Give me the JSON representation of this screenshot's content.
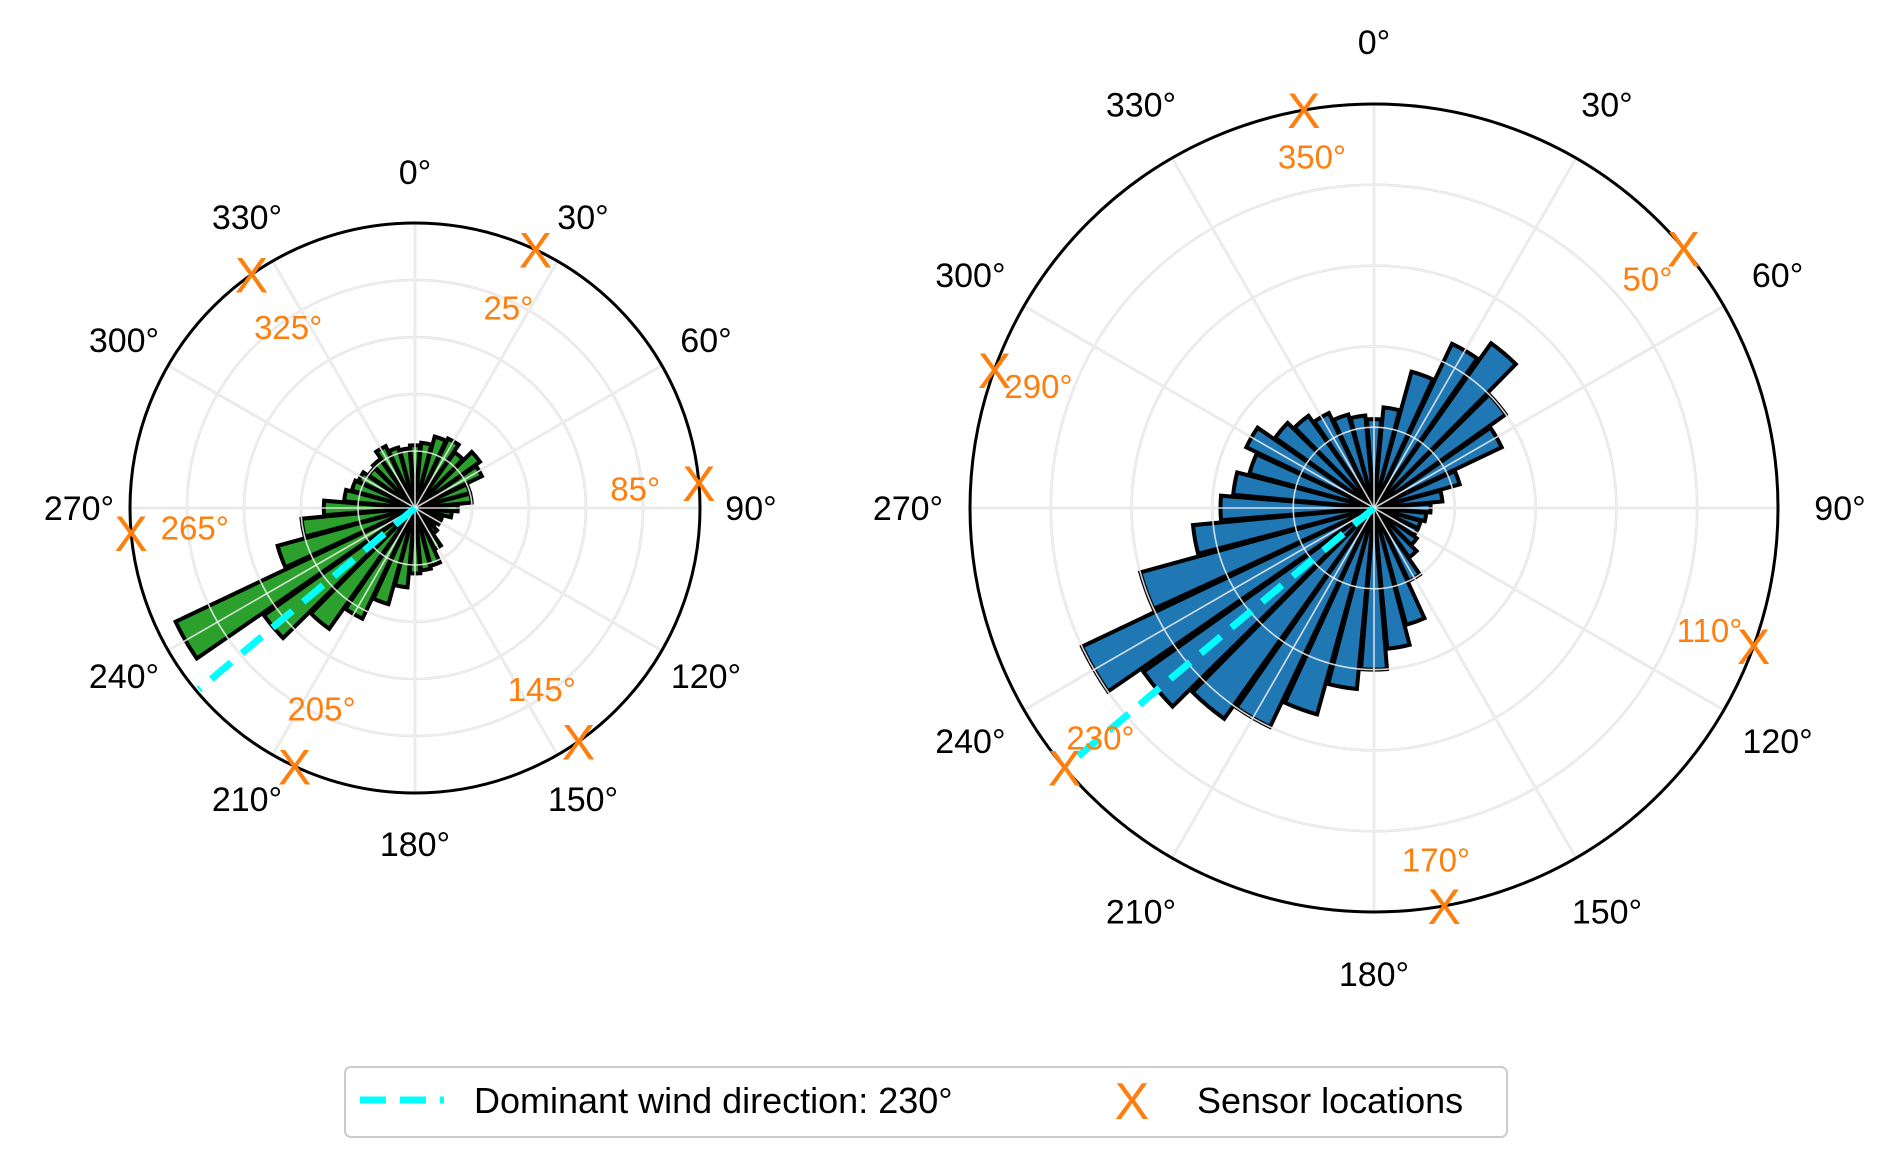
{
  "colors": {
    "sensor": "#ff7f0e",
    "dominant_line": "#00ffff",
    "left_bars": "#2ca02c",
    "right_bars": "#1f77b4",
    "bar_edge": "#000000",
    "grid": "#dcdcdc"
  },
  "legend": {
    "dominant_label": "Dominant wind direction: 230°",
    "sensor_label": "Sensor locations",
    "sensor_marker_glyph": "X"
  },
  "chart_data": [
    {
      "type": "polar-bar",
      "theta_zero": "N",
      "theta_direction": "clockwise",
      "angle_tick_labels": [
        "0°",
        "30°",
        "60°",
        "90°",
        "120°",
        "150°",
        "180°",
        "210°",
        "240°",
        "270°",
        "300°",
        "330°"
      ],
      "bar_color": "#2ca02c",
      "dominant_direction_deg": 230,
      "rmax": 10,
      "radial_gridlines": [
        2,
        4,
        6,
        8,
        10
      ],
      "sensor_radius": 10,
      "sensors": [
        {
          "angle": 25,
          "label": "25°"
        },
        {
          "angle": 85,
          "label": "85°"
        },
        {
          "angle": 145,
          "label": "145°"
        },
        {
          "angle": 205,
          "label": "205°"
        },
        {
          "angle": 265,
          "label": "265°"
        },
        {
          "angle": 325,
          "label": "325°"
        }
      ],
      "bins": [
        {
          "angle": 0,
          "value": 2.2
        },
        {
          "angle": 10,
          "value": 2.3
        },
        {
          "angle": 20,
          "value": 2.6
        },
        {
          "angle": 30,
          "value": 2.7
        },
        {
          "angle": 40,
          "value": 2.4
        },
        {
          "angle": 50,
          "value": 2.8
        },
        {
          "angle": 60,
          "value": 2.6
        },
        {
          "angle": 70,
          "value": 2.0
        },
        {
          "angle": 80,
          "value": 2.0
        },
        {
          "angle": 90,
          "value": 1.5
        },
        {
          "angle": 100,
          "value": 1.3
        },
        {
          "angle": 110,
          "value": 1.0
        },
        {
          "angle": 120,
          "value": 1.0
        },
        {
          "angle": 130,
          "value": 0.9
        },
        {
          "angle": 140,
          "value": 1.1
        },
        {
          "angle": 150,
          "value": 1.6
        },
        {
          "angle": 160,
          "value": 2.1
        },
        {
          "angle": 170,
          "value": 2.2
        },
        {
          "angle": 180,
          "value": 2.3
        },
        {
          "angle": 190,
          "value": 2.8
        },
        {
          "angle": 200,
          "value": 3.5
        },
        {
          "angle": 210,
          "value": 4.3
        },
        {
          "angle": 220,
          "value": 5.2
        },
        {
          "angle": 230,
          "value": 6.5
        },
        {
          "angle": 240,
          "value": 9.3
        },
        {
          "angle": 250,
          "value": 5.0
        },
        {
          "angle": 260,
          "value": 4.0
        },
        {
          "angle": 270,
          "value": 3.2
        },
        {
          "angle": 280,
          "value": 2.5
        },
        {
          "angle": 290,
          "value": 2.3
        },
        {
          "angle": 300,
          "value": 2.2
        },
        {
          "angle": 310,
          "value": 2.0
        },
        {
          "angle": 320,
          "value": 2.1
        },
        {
          "angle": 330,
          "value": 2.4
        },
        {
          "angle": 340,
          "value": 2.2
        },
        {
          "angle": 350,
          "value": 2.1
        }
      ]
    },
    {
      "type": "polar-bar",
      "theta_zero": "N",
      "theta_direction": "clockwise",
      "angle_tick_labels": [
        "0°",
        "30°",
        "60°",
        "90°",
        "120°",
        "150°",
        "180°",
        "210°",
        "240°",
        "270°",
        "300°",
        "330°"
      ],
      "bar_color": "#1f77b4",
      "dominant_direction_deg": 230,
      "rmax": 10,
      "radial_gridlines": [
        2,
        4,
        6,
        8,
        10
      ],
      "sensor_radius": 10,
      "sensors": [
        {
          "angle": 50,
          "label": "50°"
        },
        {
          "angle": 110,
          "label": "110°"
        },
        {
          "angle": 170,
          "label": "170°"
        },
        {
          "angle": 230,
          "label": "230°"
        },
        {
          "angle": 290,
          "label": "290°"
        },
        {
          "angle": 350,
          "label": "350°"
        }
      ],
      "bins": [
        {
          "angle": 0,
          "value": 2.2
        },
        {
          "angle": 10,
          "value": 2.5
        },
        {
          "angle": 20,
          "value": 3.5
        },
        {
          "angle": 30,
          "value": 4.5
        },
        {
          "angle": 40,
          "value": 5.0
        },
        {
          "angle": 50,
          "value": 4.0
        },
        {
          "angle": 60,
          "value": 3.5
        },
        {
          "angle": 70,
          "value": 2.2
        },
        {
          "angle": 80,
          "value": 1.7
        },
        {
          "angle": 90,
          "value": 1.4
        },
        {
          "angle": 100,
          "value": 1.3
        },
        {
          "angle": 110,
          "value": 1.2
        },
        {
          "angle": 120,
          "value": 1.2
        },
        {
          "angle": 130,
          "value": 1.3
        },
        {
          "angle": 140,
          "value": 1.5
        },
        {
          "angle": 150,
          "value": 2.0
        },
        {
          "angle": 160,
          "value": 3.0
        },
        {
          "angle": 170,
          "value": 3.5
        },
        {
          "angle": 180,
          "value": 4.0
        },
        {
          "angle": 190,
          "value": 4.5
        },
        {
          "angle": 200,
          "value": 5.3
        },
        {
          "angle": 210,
          "value": 6.0
        },
        {
          "angle": 220,
          "value": 6.4
        },
        {
          "angle": 230,
          "value": 7.0
        },
        {
          "angle": 240,
          "value": 8.0
        },
        {
          "angle": 250,
          "value": 6.0
        },
        {
          "angle": 260,
          "value": 4.5
        },
        {
          "angle": 270,
          "value": 3.8
        },
        {
          "angle": 280,
          "value": 3.5
        },
        {
          "angle": 290,
          "value": 3.2
        },
        {
          "angle": 300,
          "value": 3.5
        },
        {
          "angle": 310,
          "value": 3.0
        },
        {
          "angle": 320,
          "value": 2.8
        },
        {
          "angle": 330,
          "value": 2.6
        },
        {
          "angle": 340,
          "value": 2.4
        },
        {
          "angle": 350,
          "value": 2.3
        }
      ]
    }
  ]
}
